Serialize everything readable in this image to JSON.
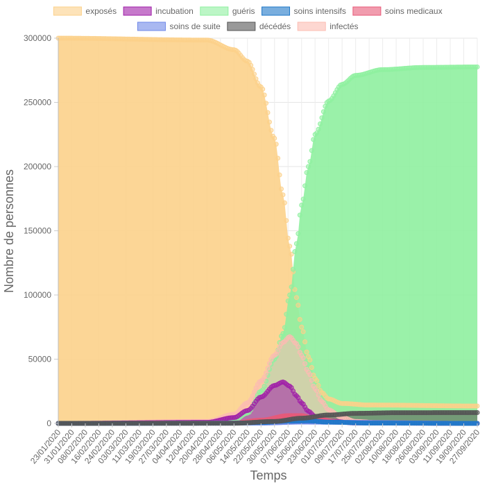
{
  "chart_data": {
    "type": "area",
    "title": "",
    "xlabel": "Temps",
    "ylabel": "Nombre de personnes",
    "ylim": [
      0,
      300000
    ],
    "yticks": [
      0,
      50000,
      100000,
      150000,
      200000,
      250000,
      300000
    ],
    "xticks": [
      "23/01/2020",
      "31/01/2020",
      "08/02/2020",
      "16/02/2020",
      "24/02/2020",
      "03/03/2020",
      "11/03/2020",
      "19/03/2020",
      "27/03/2020",
      "04/04/2020",
      "12/04/2020",
      "20/04/2020",
      "28/04/2020",
      "06/05/2020",
      "14/05/2020",
      "22/05/2020",
      "30/05/2020",
      "07/06/2020",
      "15/06/2020",
      "23/06/2020",
      "01/07/2020",
      "09/07/2020",
      "17/07/2020",
      "25/07/2020",
      "02/08/2020",
      "10/08/2020",
      "18/08/2020",
      "26/08/2020",
      "03/09/2020",
      "11/09/2020",
      "19/09/2020",
      "27/09/2020"
    ],
    "x_start": "23/01/2020",
    "x_end": "27/09/2020",
    "grid": true,
    "legend_position": "top",
    "series": [
      {
        "name": "exposés",
        "color": "#fcd18b",
        "points": [
          [
            "23/01/2020",
            300000
          ],
          [
            "20/04/2020",
            298500
          ],
          [
            "06/05/2020",
            291000
          ],
          [
            "14/05/2020",
            282000
          ],
          [
            "22/05/2020",
            262000
          ],
          [
            "30/05/2020",
            222000
          ],
          [
            "04/06/2020",
            178000
          ],
          [
            "08/06/2020",
            138000
          ],
          [
            "12/06/2020",
            98000
          ],
          [
            "15/06/2020",
            75000
          ],
          [
            "19/06/2020",
            52000
          ],
          [
            "23/06/2020",
            35000
          ],
          [
            "27/06/2020",
            24000
          ],
          [
            "01/07/2020",
            19000
          ],
          [
            "09/07/2020",
            15500
          ],
          [
            "25/07/2020",
            14300
          ],
          [
            "27/09/2020",
            13500
          ]
        ]
      },
      {
        "name": "incubation",
        "color": "#a020a8",
        "points": [
          [
            "23/01/2020",
            0
          ],
          [
            "20/04/2020",
            800
          ],
          [
            "06/05/2020",
            4500
          ],
          [
            "14/05/2020",
            10000
          ],
          [
            "22/05/2020",
            20500
          ],
          [
            "30/05/2020",
            29500
          ],
          [
            "04/06/2020",
            32200
          ],
          [
            "08/06/2020",
            29000
          ],
          [
            "12/06/2020",
            21500
          ],
          [
            "15/06/2020",
            16000
          ],
          [
            "19/06/2020",
            9500
          ],
          [
            "23/06/2020",
            5500
          ],
          [
            "01/07/2020",
            1800
          ],
          [
            "17/07/2020",
            300
          ],
          [
            "27/09/2020",
            0
          ]
        ]
      },
      {
        "name": "guéris",
        "color": "#8ff0a0",
        "points": [
          [
            "23/01/2020",
            0
          ],
          [
            "20/04/2020",
            200
          ],
          [
            "06/05/2020",
            2500
          ],
          [
            "14/05/2020",
            8000
          ],
          [
            "22/05/2020",
            25000
          ],
          [
            "30/05/2020",
            50000
          ],
          [
            "04/06/2020",
            70000
          ],
          [
            "08/06/2020",
            100000
          ],
          [
            "12/06/2020",
            140000
          ],
          [
            "15/06/2020",
            170000
          ],
          [
            "19/06/2020",
            200000
          ],
          [
            "23/06/2020",
            225000
          ],
          [
            "01/07/2020",
            251000
          ],
          [
            "09/07/2020",
            264000
          ],
          [
            "17/07/2020",
            271000
          ],
          [
            "02/08/2020",
            275500
          ],
          [
            "26/08/2020",
            277200
          ],
          [
            "27/09/2020",
            277600
          ]
        ]
      },
      {
        "name": "soins intensifs",
        "color": "#1f78c8",
        "points": [
          [
            "23/01/2020",
            0
          ],
          [
            "06/05/2020",
            150
          ],
          [
            "22/05/2020",
            700
          ],
          [
            "07/06/2020",
            1800
          ],
          [
            "19/06/2020",
            2000
          ],
          [
            "01/07/2020",
            1000
          ],
          [
            "25/07/2020",
            200
          ],
          [
            "27/09/2020",
            0
          ]
        ]
      },
      {
        "name": "soins medicaux",
        "color": "#e85a78",
        "points": [
          [
            "23/01/2020",
            0
          ],
          [
            "06/05/2020",
            300
          ],
          [
            "22/05/2020",
            2500
          ],
          [
            "07/06/2020",
            6000
          ],
          [
            "15/06/2020",
            6000
          ],
          [
            "23/06/2020",
            3500
          ],
          [
            "09/07/2020",
            800
          ],
          [
            "27/09/2020",
            0
          ]
        ]
      },
      {
        "name": "soins de suite",
        "color": "#6f88e8",
        "points": [
          [
            "23/01/2020",
            0
          ],
          [
            "22/05/2020",
            200
          ],
          [
            "15/06/2020",
            1000
          ],
          [
            "09/07/2020",
            800
          ],
          [
            "27/09/2020",
            0
          ]
        ]
      },
      {
        "name": "décédés",
        "color": "#555555",
        "points": [
          [
            "23/01/2020",
            0
          ],
          [
            "06/05/2020",
            100
          ],
          [
            "30/05/2020",
            1500
          ],
          [
            "15/06/2020",
            4000
          ],
          [
            "01/07/2020",
            6500
          ],
          [
            "17/07/2020",
            7800
          ],
          [
            "10/08/2020",
            8300
          ],
          [
            "27/09/2020",
            8400
          ]
        ]
      },
      {
        "name": "infectés",
        "color": "#fcbcb2",
        "points": [
          [
            "23/01/2020",
            0
          ],
          [
            "20/04/2020",
            1500
          ],
          [
            "06/05/2020",
            7000
          ],
          [
            "14/05/2020",
            16000
          ],
          [
            "22/05/2020",
            33000
          ],
          [
            "30/05/2020",
            53000
          ],
          [
            "04/06/2020",
            63000
          ],
          [
            "08/06/2020",
            67500
          ],
          [
            "12/06/2020",
            62000
          ],
          [
            "15/06/2020",
            53000
          ],
          [
            "19/06/2020",
            40000
          ],
          [
            "23/06/2020",
            27000
          ],
          [
            "27/06/2020",
            17000
          ],
          [
            "01/07/2020",
            10500
          ],
          [
            "09/07/2020",
            4500
          ],
          [
            "17/07/2020",
            1500
          ],
          [
            "02/08/2020",
            300
          ],
          [
            "27/09/2020",
            0
          ]
        ]
      }
    ]
  }
}
